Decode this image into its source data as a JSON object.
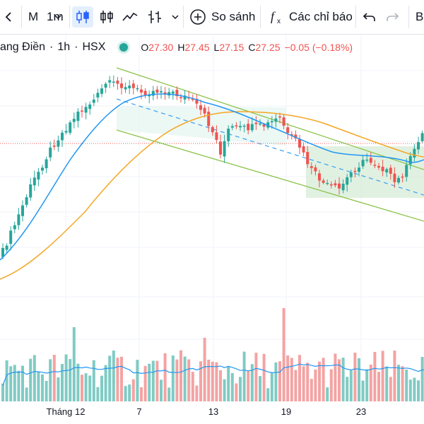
{
  "toolbar": {
    "symbol_label": "M",
    "interval_label": "1m",
    "compare_label": "So sánh",
    "indicators_label": "Các chỉ báo",
    "cut_off_label": "B"
  },
  "legend": {
    "name": "ang Điền",
    "interval": "1h",
    "exchange": "HSX",
    "o_label": "O",
    "o_value": "27.30",
    "h_label": "H",
    "h_value": "27.45",
    "l_label": "L",
    "l_value": "27.15",
    "c_label": "C",
    "c_value": "27.25",
    "change": "−0.05 (−0.18%)",
    "status_color": "#26a69a",
    "value_color": "#ef5350"
  },
  "date_axis": {
    "labels": [
      "Tháng 12",
      "7",
      "13",
      "19",
      "23"
    ]
  },
  "colors": {
    "up": "#26a69a",
    "down": "#ef5350",
    "vol_up": "#80cbc4",
    "vol_down": "#f4a3a3",
    "ma_fast": "#2196f3",
    "ma_slow": "#f5a623",
    "vol_ma": "#2196f3",
    "channel": "#8bc34a",
    "price_line": "#ef5350"
  }
}
